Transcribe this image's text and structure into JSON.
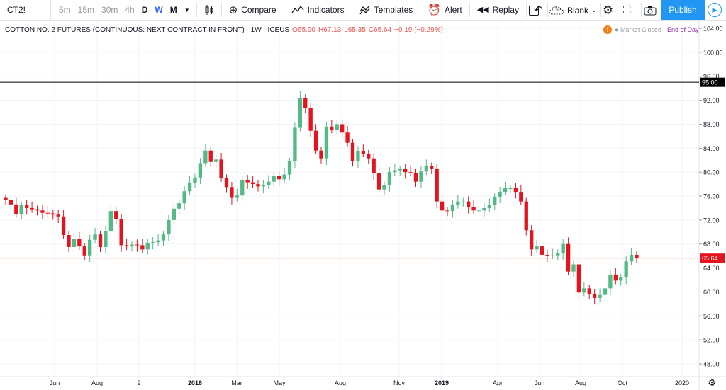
{
  "toolbar": {
    "symbol": "CT2!",
    "intervals": [
      "5m",
      "15m",
      "30m",
      "4h",
      "D",
      "W",
      "M"
    ],
    "active_interval": "W",
    "compare_label": "Compare",
    "indicators_label": "Indicators",
    "templates_label": "Templates",
    "alert_label": "Alert",
    "replay_label": "Replay",
    "layout_label": "Blank",
    "publish_label": "Publish"
  },
  "legend": {
    "title": "COTTON NO. 2 FUTURES (CONTINUOUS: NEXT CONTRACT IN FRONT) · 1W · ICEUS",
    "open": "O65.90",
    "high": "H67.13",
    "low": "L65.35",
    "close": "C65.64",
    "change": "−0.19 (−0.29%)"
  },
  "status": {
    "market": "Market Closed",
    "data_mode": "End of Day"
  },
  "colors": {
    "up": "#26a69a",
    "up_light": "#53b987",
    "down": "#ef5350",
    "down_dark": "#e5131d",
    "accent": "#2196f3",
    "price_line": "#ef5350",
    "horizontal_level": "#000000"
  },
  "chart_data": {
    "type": "candlestick",
    "y_axis": {
      "min": 46,
      "max": 105,
      "ticks": [
        48.0,
        52.0,
        56.0,
        60.0,
        64.0,
        68.0,
        72.0,
        76.0,
        80.0,
        84.0,
        88.0,
        92.0,
        96.0,
        100.0,
        104.0
      ]
    },
    "x_axis_labels": [
      "Jun",
      "Aug",
      "9",
      "2018",
      "Mar",
      "May",
      "Aug",
      "Nov",
      "2019",
      "Apr",
      "Jun",
      "Aug",
      "Oct",
      "2020"
    ],
    "horizontal_line": {
      "value": 95.0,
      "label": "95.00"
    },
    "last_price": {
      "value": 65.64,
      "label": "65.64"
    },
    "closes": [
      75.3,
      74.6,
      73.0,
      74.5,
      74.0,
      73.8,
      73.6,
      73.2,
      73.1,
      72.9,
      72.6,
      69.5,
      67.5,
      68.9,
      67.6,
      66.1,
      68.7,
      69.6,
      67.5,
      70.2,
      73.5,
      72.1,
      67.8,
      67.6,
      67.9,
      67.8,
      67.1,
      68.2,
      68.3,
      68.6,
      69.6,
      72.0,
      73.9,
      74.8,
      76.8,
      78.2,
      79.1,
      81.5,
      83.6,
      81.7,
      82.1,
      79.0,
      77.5,
      75.7,
      76.1,
      78.7,
      78.3,
      78.0,
      77.6,
      77.8,
      78.4,
      79.4,
      78.8,
      79.6,
      81.8,
      87.4,
      92.4,
      90.7,
      86.9,
      83.6,
      82.3,
      87.6,
      87.1,
      88.0,
      86.6,
      84.9,
      81.8,
      83.5,
      83.1,
      82.3,
      79.8,
      77.1,
      77.8,
      80.0,
      80.3,
      80.5,
      80.0,
      79.9,
      78.4,
      80.1,
      81.0,
      80.5,
      75.1,
      73.6,
      73.5,
      74.5,
      75.1,
      75.1,
      74.2,
      73.6,
      73.6,
      74.0,
      74.5,
      75.9,
      76.7,
      77.3,
      77.3,
      76.7,
      75.1,
      70.3,
      67.1,
      67.6,
      66.2,
      66.1,
      66.1,
      66.5,
      68.0,
      63.4,
      64.6,
      59.9,
      60.6,
      59.6,
      59.0,
      59.5,
      60.6,
      62.9,
      61.9,
      62.4,
      65.1,
      66.2,
      65.64
    ]
  }
}
